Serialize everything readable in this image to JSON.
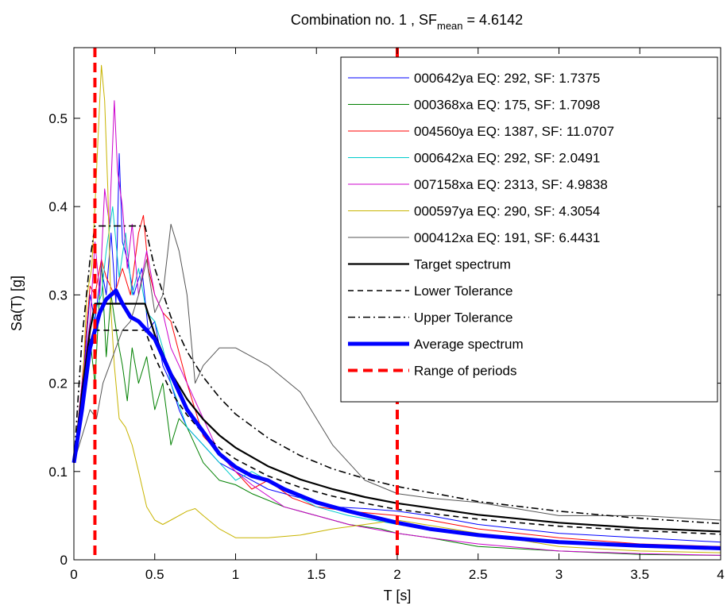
{
  "chart_data": {
    "type": "line",
    "title_main": "Combination no. 1 , SF",
    "title_sub": "mean",
    "title_value": " = 4.6142",
    "xlabel": "T [s]",
    "ylabel": "Sa(T) [g]",
    "xlim": [
      0,
      4
    ],
    "ylim": [
      0,
      0.58
    ],
    "xticks": [
      0,
      0.5,
      1,
      1.5,
      2,
      2.5,
      3,
      3.5,
      4
    ],
    "xtick_labels": [
      "0",
      "0.5",
      "1",
      "1.5",
      "2",
      "2.5",
      "3",
      "3.5",
      "4"
    ],
    "yticks": [
      0,
      0.1,
      0.2,
      0.3,
      0.4,
      0.5
    ],
    "ytick_labels": [
      "0",
      "0.1",
      "0.2",
      "0.3",
      "0.4",
      "0.5"
    ],
    "grid": false,
    "legend_position": "top-right",
    "period_range": [
      0.13,
      2.0
    ],
    "series": [
      {
        "name": "000642ya EQ: 292, SF: 1.7375",
        "color": "#0000ff",
        "width": 1,
        "dash": "",
        "x": [
          0,
          0.05,
          0.1,
          0.13,
          0.17,
          0.2,
          0.23,
          0.26,
          0.28,
          0.3,
          0.33,
          0.37,
          0.42,
          0.46,
          0.5,
          0.55,
          0.6,
          0.65,
          0.7,
          0.8,
          0.9,
          1.0,
          1.1,
          1.2,
          1.4,
          1.6,
          1.8,
          2.0,
          2.2,
          2.5,
          3.0,
          3.5,
          4.0
        ],
        "y": [
          0.11,
          0.19,
          0.3,
          0.27,
          0.33,
          0.3,
          0.37,
          0.29,
          0.46,
          0.36,
          0.34,
          0.3,
          0.33,
          0.26,
          0.27,
          0.22,
          0.2,
          0.17,
          0.15,
          0.13,
          0.11,
          0.1,
          0.09,
          0.08,
          0.07,
          0.06,
          0.058,
          0.055,
          0.05,
          0.04,
          0.03,
          0.025,
          0.02
        ]
      },
      {
        "name": "000368xa EQ: 175, SF: 1.7098",
        "color": "#008000",
        "width": 1,
        "dash": "",
        "x": [
          0,
          0.05,
          0.1,
          0.13,
          0.17,
          0.2,
          0.23,
          0.27,
          0.3,
          0.33,
          0.36,
          0.4,
          0.45,
          0.5,
          0.55,
          0.6,
          0.65,
          0.7,
          0.75,
          0.8,
          0.9,
          1.0,
          1.1,
          1.3,
          1.5,
          1.7,
          1.9,
          2.0,
          2.2,
          2.5,
          3.0,
          3.5,
          4.0
        ],
        "y": [
          0.11,
          0.16,
          0.25,
          0.2,
          0.34,
          0.23,
          0.3,
          0.25,
          0.22,
          0.18,
          0.24,
          0.2,
          0.23,
          0.17,
          0.2,
          0.13,
          0.16,
          0.15,
          0.13,
          0.11,
          0.09,
          0.085,
          0.075,
          0.06,
          0.05,
          0.04,
          0.035,
          0.03,
          0.025,
          0.015,
          0.01,
          0.006,
          0.005
        ]
      },
      {
        "name": "004560ya EQ: 1387, SF: 11.0707",
        "color": "#ff0000",
        "width": 1,
        "dash": "",
        "x": [
          0,
          0.05,
          0.1,
          0.13,
          0.17,
          0.2,
          0.25,
          0.3,
          0.35,
          0.4,
          0.43,
          0.46,
          0.5,
          0.55,
          0.6,
          0.7,
          0.8,
          0.9,
          1.0,
          1.1,
          1.2,
          1.35,
          1.5,
          1.7,
          2.0,
          2.2,
          2.5,
          3.0,
          3.5,
          4.0
        ],
        "y": [
          0.11,
          0.2,
          0.31,
          0.3,
          0.34,
          0.32,
          0.3,
          0.33,
          0.3,
          0.37,
          0.39,
          0.33,
          0.3,
          0.28,
          0.27,
          0.2,
          0.14,
          0.12,
          0.1,
          0.08,
          0.09,
          0.07,
          0.06,
          0.055,
          0.05,
          0.045,
          0.035,
          0.025,
          0.018,
          0.015
        ]
      },
      {
        "name": "000642xa EQ: 292, SF: 2.0491",
        "color": "#00cccc",
        "width": 1,
        "dash": "",
        "x": [
          0,
          0.05,
          0.1,
          0.13,
          0.17,
          0.2,
          0.24,
          0.28,
          0.32,
          0.36,
          0.4,
          0.45,
          0.5,
          0.55,
          0.6,
          0.7,
          0.8,
          0.9,
          1.0,
          1.1,
          1.2,
          1.3,
          1.5,
          1.7,
          2.0,
          2.2,
          2.5,
          3.0,
          3.5,
          4.0
        ],
        "y": [
          0.11,
          0.18,
          0.26,
          0.28,
          0.3,
          0.35,
          0.4,
          0.32,
          0.37,
          0.3,
          0.33,
          0.28,
          0.27,
          0.24,
          0.2,
          0.15,
          0.13,
          0.11,
          0.09,
          0.1,
          0.09,
          0.08,
          0.06,
          0.05,
          0.04,
          0.035,
          0.028,
          0.02,
          0.016,
          0.014
        ]
      },
      {
        "name": "007158xa EQ: 2313, SF: 4.9838",
        "color": "#cc00cc",
        "width": 1,
        "dash": "",
        "x": [
          0,
          0.05,
          0.1,
          0.13,
          0.16,
          0.19,
          0.22,
          0.25,
          0.27,
          0.3,
          0.33,
          0.36,
          0.4,
          0.45,
          0.5,
          0.55,
          0.6,
          0.65,
          0.7,
          0.8,
          0.9,
          1.0,
          1.1,
          1.3,
          1.5,
          1.7,
          2.0,
          2.2,
          2.5,
          3.0,
          3.5,
          4.0
        ],
        "y": [
          0.11,
          0.2,
          0.27,
          0.36,
          0.3,
          0.42,
          0.38,
          0.52,
          0.44,
          0.4,
          0.33,
          0.38,
          0.3,
          0.35,
          0.3,
          0.28,
          0.24,
          0.22,
          0.2,
          0.16,
          0.12,
          0.1,
          0.085,
          0.06,
          0.05,
          0.04,
          0.03,
          0.025,
          0.018,
          0.01,
          0.007,
          0.005
        ]
      },
      {
        "name": "000597ya EQ: 290, SF: 4.3054",
        "color": "#c8b400",
        "width": 1,
        "dash": "",
        "x": [
          0,
          0.05,
          0.08,
          0.11,
          0.13,
          0.15,
          0.17,
          0.19,
          0.21,
          0.23,
          0.25,
          0.28,
          0.32,
          0.36,
          0.4,
          0.45,
          0.5,
          0.55,
          0.6,
          0.7,
          0.75,
          0.8,
          0.9,
          1.0,
          1.2,
          1.4,
          1.6,
          1.8,
          2.0,
          2.5,
          3.0,
          3.5,
          4.0
        ],
        "y": [
          0.11,
          0.18,
          0.3,
          0.33,
          0.4,
          0.48,
          0.56,
          0.52,
          0.42,
          0.28,
          0.22,
          0.16,
          0.15,
          0.13,
          0.1,
          0.06,
          0.045,
          0.04,
          0.045,
          0.055,
          0.058,
          0.05,
          0.035,
          0.025,
          0.025,
          0.028,
          0.035,
          0.04,
          0.045,
          0.03,
          0.015,
          0.01,
          0.008
        ]
      },
      {
        "name": "000412xa EQ: 191, SF: 6.4431",
        "color": "#555555",
        "width": 1,
        "dash": "",
        "x": [
          0,
          0.05,
          0.1,
          0.14,
          0.18,
          0.22,
          0.26,
          0.3,
          0.35,
          0.4,
          0.45,
          0.5,
          0.55,
          0.6,
          0.65,
          0.7,
          0.75,
          0.8,
          0.9,
          1.0,
          1.1,
          1.2,
          1.4,
          1.6,
          1.8,
          2.0,
          2.2,
          2.5,
          3.0,
          3.3,
          3.5,
          4.0
        ],
        "y": [
          0.11,
          0.14,
          0.17,
          0.16,
          0.2,
          0.22,
          0.24,
          0.26,
          0.27,
          0.3,
          0.34,
          0.28,
          0.3,
          0.38,
          0.35,
          0.3,
          0.2,
          0.22,
          0.24,
          0.24,
          0.23,
          0.22,
          0.19,
          0.13,
          0.09,
          0.075,
          0.07,
          0.065,
          0.05,
          0.05,
          0.05,
          0.045
        ]
      },
      {
        "name": "Target spectrum",
        "color": "#000000",
        "width": 2.2,
        "dash": "",
        "x": [
          0,
          0.05,
          0.1,
          0.13,
          0.44,
          0.5,
          0.6,
          0.7,
          0.8,
          0.9,
          1.0,
          1.2,
          1.4,
          1.6,
          1.8,
          2.0,
          2.5,
          3.0,
          3.5,
          4.0
        ],
        "y": [
          0.11,
          0.19,
          0.26,
          0.29,
          0.29,
          0.255,
          0.212,
          0.182,
          0.159,
          0.141,
          0.127,
          0.106,
          0.091,
          0.08,
          0.071,
          0.064,
          0.051,
          0.042,
          0.036,
          0.032
        ]
      },
      {
        "name": "Lower Tolerance",
        "color": "#000000",
        "width": 1.6,
        "dash": "7,5",
        "x": [
          0,
          0.05,
          0.1,
          0.13,
          0.44,
          0.5,
          0.6,
          0.7,
          0.8,
          0.9,
          1.0,
          1.2,
          1.4,
          1.6,
          1.8,
          2.0,
          2.5,
          3.0,
          3.5,
          4.0
        ],
        "y": [
          0.11,
          0.18,
          0.24,
          0.26,
          0.26,
          0.23,
          0.19,
          0.164,
          0.143,
          0.127,
          0.114,
          0.095,
          0.082,
          0.072,
          0.064,
          0.057,
          0.046,
          0.038,
          0.033,
          0.029
        ]
      },
      {
        "name": "Upper Tolerance",
        "color": "#000000",
        "width": 1.6,
        "dash": "9,4,2,4",
        "x": [
          0,
          0.05,
          0.1,
          0.13,
          0.44,
          0.5,
          0.6,
          0.7,
          0.8,
          0.9,
          1.0,
          1.2,
          1.4,
          1.6,
          1.8,
          2.0,
          2.5,
          3.0,
          3.5,
          4.0
        ],
        "y": [
          0.11,
          0.25,
          0.34,
          0.378,
          0.378,
          0.33,
          0.275,
          0.236,
          0.207,
          0.184,
          0.165,
          0.138,
          0.118,
          0.103,
          0.092,
          0.083,
          0.066,
          0.055,
          0.047,
          0.041
        ]
      },
      {
        "name": "Average spectrum",
        "color": "#0000ff",
        "width": 5,
        "dash": "",
        "x": [
          0,
          0.05,
          0.1,
          0.13,
          0.16,
          0.2,
          0.23,
          0.26,
          0.3,
          0.35,
          0.4,
          0.45,
          0.5,
          0.55,
          0.6,
          0.65,
          0.7,
          0.8,
          0.9,
          1.0,
          1.1,
          1.2,
          1.3,
          1.5,
          1.7,
          2.0,
          2.2,
          2.5,
          3.0,
          3.5,
          4.0
        ],
        "y": [
          0.11,
          0.17,
          0.24,
          0.26,
          0.28,
          0.295,
          0.3,
          0.305,
          0.29,
          0.275,
          0.27,
          0.26,
          0.25,
          0.23,
          0.21,
          0.19,
          0.17,
          0.145,
          0.12,
          0.105,
          0.095,
          0.09,
          0.08,
          0.065,
          0.055,
          0.042,
          0.035,
          0.028,
          0.02,
          0.016,
          0.013
        ]
      }
    ]
  }
}
